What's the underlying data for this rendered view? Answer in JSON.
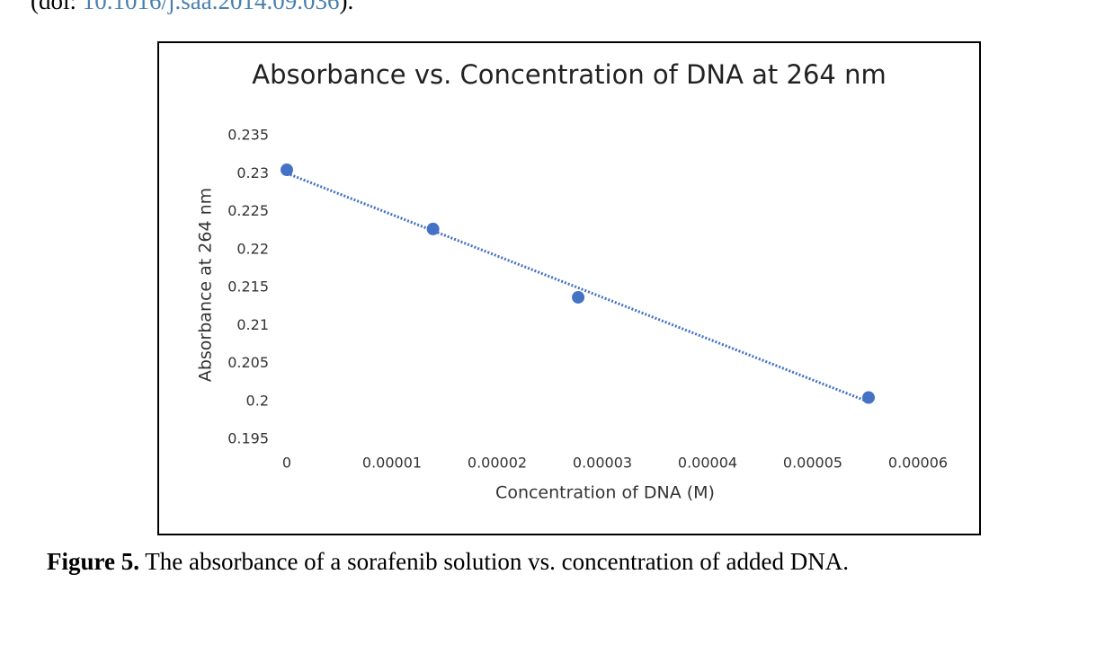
{
  "header": {
    "doi_prefix": "(doi: ",
    "doi_link": "10.1016/j.saa.2014.09.036",
    "doi_suffix": ")."
  },
  "chart_data": {
    "type": "scatter",
    "title": "Absorbance vs. Concentration of DNA at 264 nm",
    "x_label": "Concentration of DNA (M)",
    "y_label": "Absorbance at 264 nm",
    "series": [
      {
        "name": "Absorbance",
        "color": "#4472c4",
        "x": [
          0,
          1.39e-05,
          2.77e-05,
          5.53e-05
        ],
        "values": [
          0.2305,
          0.2227,
          0.2137,
          0.2005
        ]
      }
    ],
    "trendline": "linear",
    "trendline_color": "#4472c4",
    "xlim": [
      0,
      6e-05
    ],
    "xticks": [
      0,
      1e-05,
      2e-05,
      3e-05,
      4e-05,
      5e-05,
      6e-05
    ],
    "ylim": [
      0.195,
      0.235
    ],
    "yticks": [
      0.195,
      0.2,
      0.205,
      0.21,
      0.215,
      0.22,
      0.225,
      0.23,
      0.235
    ],
    "grid": false
  },
  "caption": {
    "label": "Figure 5.",
    "text": " The absorbance of a sorafenib solution vs. concentration of added DNA."
  }
}
